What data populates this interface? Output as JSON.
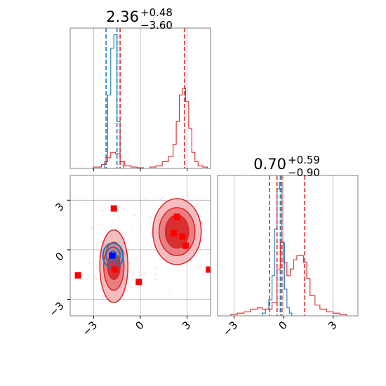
{
  "colors": {
    "red": "#d62728",
    "red_fill_light": "#f4b6b8",
    "red_fill_mid": "#e9787c",
    "red_fill_dark": "#d62728",
    "blue": "#1f77b4",
    "marker_blue": "#0000ff",
    "marker_red": "#ff0000",
    "grid": "#b0b0b0",
    "axis": "#808080"
  },
  "chart_data": [
    {
      "type": "histogram",
      "panel": "top-left",
      "title": {
        "value": "2.36",
        "upper": "+0.48",
        "lower": "−3.60"
      },
      "xlim": [
        -4.5,
        4.5
      ],
      "grid": true,
      "series": [
        {
          "color": "blue",
          "bin_edges": [
            -2.3,
            -2.1,
            -1.9,
            -1.7,
            -1.5,
            -1.3,
            -1.1
          ],
          "counts": [
            0.05,
            0.55,
            0.9,
            1.0,
            0.35,
            0.05
          ],
          "lines": [
            -2.2,
            -1.5
          ]
        },
        {
          "color": "red",
          "bin_edges": [
            -4.0,
            -3.5,
            -3.0,
            -2.5,
            -2.2,
            -1.9,
            -1.6,
            -1.3,
            -1.0,
            -0.6,
            -0.2,
            0.2,
            0.6,
            1.0,
            1.4,
            1.8,
            2.1,
            2.3,
            2.5,
            2.7,
            2.9,
            3.1,
            3.3,
            3.5,
            3.7,
            4.0,
            4.3
          ],
          "counts": [
            0.0,
            0.0,
            0.01,
            0.03,
            0.08,
            0.12,
            0.11,
            0.05,
            0.02,
            0.01,
            0.005,
            0.0,
            0.01,
            0.02,
            0.05,
            0.09,
            0.18,
            0.35,
            0.55,
            0.6,
            0.5,
            0.3,
            0.12,
            0.05,
            0.02,
            0.01
          ],
          "lines": [
            -1.3,
            2.84
          ]
        }
      ]
    },
    {
      "type": "histogram",
      "panel": "bottom-right",
      "title": {
        "value": "0.70",
        "upper": "+0.59",
        "lower": "−0.90"
      },
      "xlim": [
        -4.0,
        4.5
      ],
      "xticks": [
        -3,
        0,
        3
      ],
      "xtick_labels": [
        "−3",
        "0",
        "3"
      ],
      "grid": true,
      "series": [
        {
          "color": "blue",
          "bin_edges": [
            -1.3,
            -1.1,
            -0.9,
            -0.7,
            -0.55,
            -0.4,
            -0.25,
            -0.1,
            0.05,
            0.2,
            0.35,
            0.5
          ],
          "counts": [
            0.02,
            0.05,
            0.12,
            0.3,
            0.65,
            0.95,
            1.0,
            0.55,
            0.2,
            0.06,
            0.02
          ],
          "lines": [
            -0.85,
            -0.2
          ]
        },
        {
          "color": "red",
          "bin_edges": [
            -3.2,
            -2.8,
            -2.4,
            -2.0,
            -1.6,
            -1.3,
            -1.0,
            -0.7,
            -0.4,
            -0.2,
            0.0,
            0.2,
            0.4,
            0.6,
            0.8,
            1.0,
            1.2,
            1.4,
            1.6,
            1.9,
            2.2,
            2.6,
            3.0,
            3.4,
            3.8
          ],
          "counts": [
            0.01,
            0.02,
            0.03,
            0.05,
            0.06,
            0.05,
            0.05,
            0.1,
            0.35,
            0.55,
            0.4,
            0.3,
            0.35,
            0.42,
            0.45,
            0.45,
            0.4,
            0.28,
            0.15,
            0.08,
            0.05,
            0.03,
            0.02,
            0.01
          ],
          "lines": [
            -0.4,
            -0.1,
            1.28
          ]
        }
      ]
    },
    {
      "type": "scatter",
      "panel": "bottom-left",
      "xlim": [
        -4.5,
        4.5
      ],
      "ylim": [
        -4.0,
        4.5
      ],
      "xticks": [
        -3,
        0,
        3
      ],
      "yticks": [
        -3,
        0,
        3
      ],
      "xtick_labels": [
        "−3",
        "0",
        "3"
      ],
      "ytick_labels": [
        "−3",
        "0",
        "3"
      ],
      "grid": true,
      "contours": [
        {
          "color": "red",
          "cx": -1.7,
          "cy": -1.0,
          "rx": [
            0.9,
            0.65,
            0.4
          ],
          "ry": [
            2.2,
            1.45,
            0.8
          ]
        },
        {
          "color": "red",
          "cx": 2.35,
          "cy": 1.1,
          "rx": [
            1.55,
            1.15,
            0.75
          ],
          "ry": [
            2.0,
            1.45,
            1.0
          ]
        },
        {
          "color": "blue",
          "cx": -1.75,
          "cy": -0.35,
          "rx": [
            0.65,
            0.45,
            0.22
          ],
          "ry": [
            0.75,
            0.5,
            0.28
          ]
        }
      ],
      "red_squares": [
        [
          -1.7,
          2.5
        ],
        [
          -4.0,
          -1.55
        ],
        [
          -1.65,
          -1.2
        ],
        [
          -0.1,
          -1.95
        ],
        [
          2.35,
          2.0
        ],
        [
          2.15,
          1.0
        ],
        [
          2.7,
          0.8
        ],
        [
          2.9,
          0.25
        ],
        [
          4.4,
          -1.2
        ]
      ],
      "blue_squares": [
        [
          -1.8,
          -0.35
        ]
      ]
    }
  ]
}
